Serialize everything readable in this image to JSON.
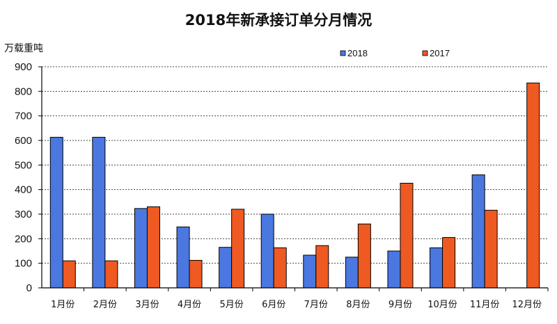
{
  "chart_data": {
    "type": "bar",
    "title": "2018年新承接订单分月情况",
    "ylabel": "万载重吨",
    "xlabel": "",
    "ylim": [
      0,
      900
    ],
    "yticks": [
      0,
      100,
      200,
      300,
      400,
      500,
      600,
      700,
      800,
      900
    ],
    "grid": "horizontal-dashed",
    "legend_position": "top-right",
    "categories": [
      "1月份",
      "2月份",
      "3月份",
      "4月份",
      "5月份",
      "6月份",
      "7月份",
      "8月份",
      "9月份",
      "10月份",
      "11月份",
      "12月份"
    ],
    "series": [
      {
        "name": "2018",
        "color": "#4a78e0",
        "values": [
          613,
          613,
          323,
          248,
          165,
          300,
          133,
          125,
          150,
          163,
          460,
          null
        ]
      },
      {
        "name": "2017",
        "color": "#ee5a22",
        "values": [
          110,
          110,
          330,
          112,
          320,
          163,
          172,
          260,
          426,
          205,
          316,
          834
        ]
      }
    ]
  }
}
